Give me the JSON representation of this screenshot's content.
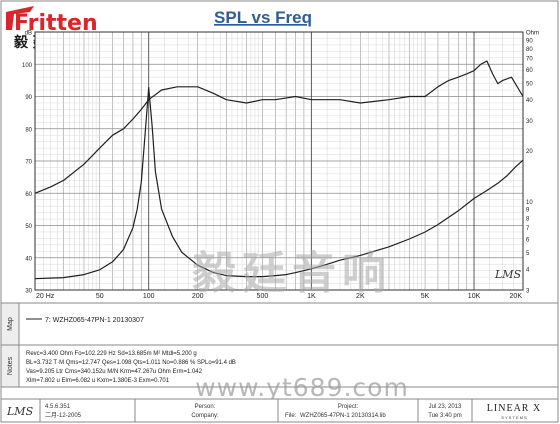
{
  "brand": {
    "logo_text": "Fritten",
    "logo_cn": "毅 廷 音 响"
  },
  "watermark": {
    "cn": "毅廷音响",
    "url": "www.yt689.com"
  },
  "chart_data": {
    "type": "line",
    "title": "SPL vs Freq",
    "xscale": "log",
    "xlim": [
      20,
      20000
    ],
    "x_ticks": [
      {
        "v": 20,
        "label": "20 Hz"
      },
      {
        "v": 50,
        "label": "50"
      },
      {
        "v": 100,
        "label": "100"
      },
      {
        "v": 200,
        "label": "200"
      },
      {
        "v": 500,
        "label": "500"
      },
      {
        "v": 1000,
        "label": "1K"
      },
      {
        "v": 2000,
        "label": "2K"
      },
      {
        "v": 5000,
        "label": "5K"
      },
      {
        "v": 10000,
        "label": "10K"
      },
      {
        "v": 20000,
        "label": "20K"
      }
    ],
    "y_left": {
      "unit": "dB",
      "ylim": [
        30,
        110
      ],
      "ticks": [
        30,
        40,
        50,
        60,
        70,
        80,
        90,
        100,
        110
      ],
      "tick_labels": [
        "30",
        "40",
        "50",
        "60",
        "70",
        "80",
        "90",
        "100",
        "dB"
      ]
    },
    "y_right": {
      "unit": "Ohm",
      "ylim": [
        3,
        100
      ],
      "scale": "log",
      "ticks": [
        3,
        4,
        5,
        6,
        7,
        8,
        9,
        10,
        20,
        30,
        40,
        50,
        60,
        70,
        80,
        90,
        100
      ],
      "tick_labels": [
        "3",
        "4",
        "5",
        "6",
        "7",
        "8",
        "9",
        "10",
        "20",
        "30",
        "40",
        "50",
        "60",
        "70",
        "80",
        "90",
        "Ohm"
      ]
    },
    "grid": true,
    "series": [
      {
        "axis": "left",
        "color": "#202020",
        "x": [
          20,
          25,
          30,
          40,
          50,
          60,
          70,
          80,
          90,
          100,
          120,
          150,
          200,
          250,
          300,
          400,
          500,
          600,
          800,
          1000,
          1500,
          2000,
          3000,
          4000,
          5000,
          6000,
          7000,
          8000,
          9000,
          10000,
          11000,
          12000,
          13000,
          14000,
          15000,
          17000,
          20000
        ],
        "y": [
          60,
          62,
          64,
          69,
          74,
          78,
          80,
          83,
          86,
          89,
          92,
          93,
          93,
          91,
          89,
          88,
          89,
          89,
          90,
          89,
          89,
          88,
          89,
          90,
          90,
          93,
          95,
          96,
          97,
          98,
          100,
          101,
          97,
          94,
          95,
          96,
          90
        ]
      },
      {
        "axis": "right",
        "color": "#202020",
        "x": [
          20,
          30,
          40,
          50,
          60,
          70,
          80,
          85,
          90,
          95,
          100,
          105,
          110,
          120,
          140,
          160,
          200,
          250,
          300,
          400,
          500,
          600,
          700,
          800,
          1000,
          1200,
          1500,
          2000,
          3000,
          4000,
          5000,
          6000,
          8000,
          10000,
          12000,
          14000,
          16000,
          18000,
          20000
        ],
        "y": [
          3.5,
          3.55,
          3.7,
          3.95,
          4.4,
          5.2,
          7.0,
          9.0,
          13.0,
          25.0,
          47.0,
          28.0,
          15.0,
          9.0,
          6.2,
          5.0,
          4.2,
          3.8,
          3.65,
          3.6,
          3.6,
          3.65,
          3.7,
          3.8,
          4.0,
          4.2,
          4.5,
          4.8,
          5.4,
          6.0,
          6.6,
          7.3,
          8.8,
          10.4,
          11.6,
          12.8,
          14.2,
          16.0,
          17.5
        ]
      }
    ],
    "annotations": [
      "LMS"
    ]
  },
  "legend": {
    "map_label": "Map",
    "entries": [
      "7: WZHZ065-47PN-1   20130307"
    ]
  },
  "notes": {
    "label": "Notes",
    "lines": [
      "Revc=3.400 Ohm  Fo=102.229 Hz  Sd=13.685m M²  Mtdl=5.200 g",
      "BL=3.732 T·M  Qms=12.747  Qes=1.098  Qts=1.011  No=0.886 %  SPLo=91.4 dB",
      "Vas=9.205 Ltr  Cms=340.152u M/N  Krm=47.267u Ohm  Erm=1.042",
      "Xlm=7.802 u  Elm=6.082 u  Kxm=1.380E-3  Exm=0.701"
    ]
  },
  "footer": {
    "logo": "LMS",
    "version": "4.5.6.351",
    "version_date": "二月-12-2005",
    "person_label": "Person:",
    "person_value": "",
    "company_label": "Company:",
    "company_value": "",
    "project_label": "Project:",
    "file_label": "File:",
    "file_value": "WZHZ065-47PN-1 20130314.lib",
    "date": "Jul 23, 2013",
    "time": "Tue  3:40 pm",
    "brand_top": "LINEAR X",
    "brand_bottom": "S Y S T E M S"
  }
}
